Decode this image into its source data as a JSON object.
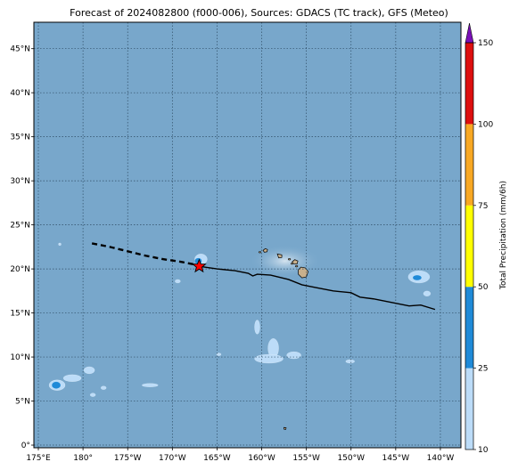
{
  "title": "Forecast of 2024082800 (f000-006), Sources: GDACS (TC track), GFS (Meteo)",
  "colors": {
    "ocean": "#78a7cb",
    "grid": "#26425a",
    "precip_levels": [
      "#bcdcf8",
      "#1f8ad8",
      "#ffff00",
      "#f8a823",
      "#dd0f0f",
      "#7a10b8"
    ],
    "track": "#000000",
    "storm_marker": "#ff0000"
  },
  "axes": {
    "lon_ticks": [
      "175°E",
      "180°",
      "175°W",
      "170°W",
      "165°W",
      "160°W",
      "155°W",
      "150°W",
      "145°W",
      "140°W"
    ],
    "lat_ticks": [
      "0°",
      "5°N",
      "10°N",
      "15°N",
      "20°N",
      "25°N",
      "30°N",
      "35°N",
      "40°N",
      "45°N"
    ],
    "lon_range": [
      174.5,
      222.3
    ],
    "lat_range": [
      -0.3,
      48
    ]
  },
  "colorbar": {
    "label": "Total Precipitation (mm/6h)",
    "ticks": [
      "10",
      "25",
      "50",
      "75",
      "100",
      "150"
    ]
  },
  "track": {
    "past_points": [
      [
        181,
        22.9
      ],
      [
        183,
        22.5
      ],
      [
        185,
        22
      ],
      [
        187,
        21.5
      ],
      [
        189,
        21.1
      ],
      [
        191,
        20.8
      ],
      [
        193,
        20.4
      ]
    ],
    "current_position": [
      193,
      20.3
    ],
    "forecast_points": [
      [
        193,
        20.3
      ],
      [
        195,
        20
      ],
      [
        197,
        19.8
      ],
      [
        198.5,
        19.5
      ],
      [
        199,
        19.2
      ],
      [
        199.5,
        19.4
      ],
      [
        201,
        19.3
      ],
      [
        203,
        18.8
      ],
      [
        204.5,
        18.2
      ],
      [
        206,
        17.9
      ],
      [
        208,
        17.5
      ],
      [
        210,
        17.3
      ],
      [
        211,
        16.8
      ],
      [
        212.5,
        16.6
      ],
      [
        214.5,
        16.2
      ],
      [
        216.5,
        15.8
      ],
      [
        217.8,
        15.9
      ],
      [
        219.4,
        15.4
      ]
    ]
  },
  "land": [
    {
      "name": "Kauai",
      "lon": 200.4,
      "lat": 22.1
    },
    {
      "name": "Oahu",
      "lon": 202,
      "lat": 21.5
    },
    {
      "name": "Maui",
      "lon": 203.7,
      "lat": 20.8
    },
    {
      "name": "Hawaii",
      "lon": 204.6,
      "lat": 19.6
    },
    {
      "name": "Johnston",
      "lon": 202.6,
      "lat": 1.9
    }
  ],
  "precip_patches": [
    {
      "lon": 193.2,
      "lat": 21.1,
      "rx": 0.7,
      "ry": 0.6,
      "level": 1
    },
    {
      "lon": 192.9,
      "lat": 20.9,
      "rx": 0.4,
      "ry": 0.35,
      "level": 2
    },
    {
      "lon": 217.6,
      "lat": 19.1,
      "rx": 1.2,
      "ry": 0.7,
      "level": 1
    },
    {
      "lon": 217.4,
      "lat": 19.0,
      "rx": 0.5,
      "ry": 0.3,
      "level": 2
    },
    {
      "lon": 218.5,
      "lat": 17.2,
      "rx": 0.4,
      "ry": 0.3,
      "level": 1
    },
    {
      "lon": 201.3,
      "lat": 11.0,
      "rx": 0.6,
      "ry": 1.1,
      "level": 1
    },
    {
      "lon": 200.8,
      "lat": 9.8,
      "rx": 1.6,
      "ry": 0.5,
      "level": 1
    },
    {
      "lon": 199.5,
      "lat": 13.4,
      "rx": 0.3,
      "ry": 0.8,
      "level": 1
    },
    {
      "lon": 203.6,
      "lat": 10.2,
      "rx": 0.8,
      "ry": 0.4,
      "level": 1
    },
    {
      "lon": 190.6,
      "lat": 18.6,
      "rx": 0.3,
      "ry": 0.2,
      "level": 1
    },
    {
      "lon": 209.9,
      "lat": 9.5,
      "rx": 0.5,
      "ry": 0.2,
      "level": 1
    },
    {
      "lon": 177.1,
      "lat": 6.8,
      "rx": 0.9,
      "ry": 0.6,
      "level": 1
    },
    {
      "lon": 177.0,
      "lat": 6.8,
      "rx": 0.5,
      "ry": 0.4,
      "level": 2
    },
    {
      "lon": 178.8,
      "lat": 7.6,
      "rx": 1.0,
      "ry": 0.4,
      "level": 1
    },
    {
      "lon": 180.7,
      "lat": 8.5,
      "rx": 0.6,
      "ry": 0.4,
      "level": 1
    },
    {
      "lon": 182.3,
      "lat": 6.5,
      "rx": 0.3,
      "ry": 0.2,
      "level": 1
    },
    {
      "lon": 181.1,
      "lat": 5.7,
      "rx": 0.3,
      "ry": 0.2,
      "level": 1
    },
    {
      "lon": 187.5,
      "lat": 6.8,
      "rx": 0.9,
      "ry": 0.2,
      "level": 1
    },
    {
      "lon": 177.4,
      "lat": 22.8,
      "rx": 0.15,
      "ry": 0.15,
      "level": 1
    },
    {
      "lon": 195.2,
      "lat": 10.3,
      "rx": 0.25,
      "ry": 0.15,
      "level": 1
    }
  ]
}
